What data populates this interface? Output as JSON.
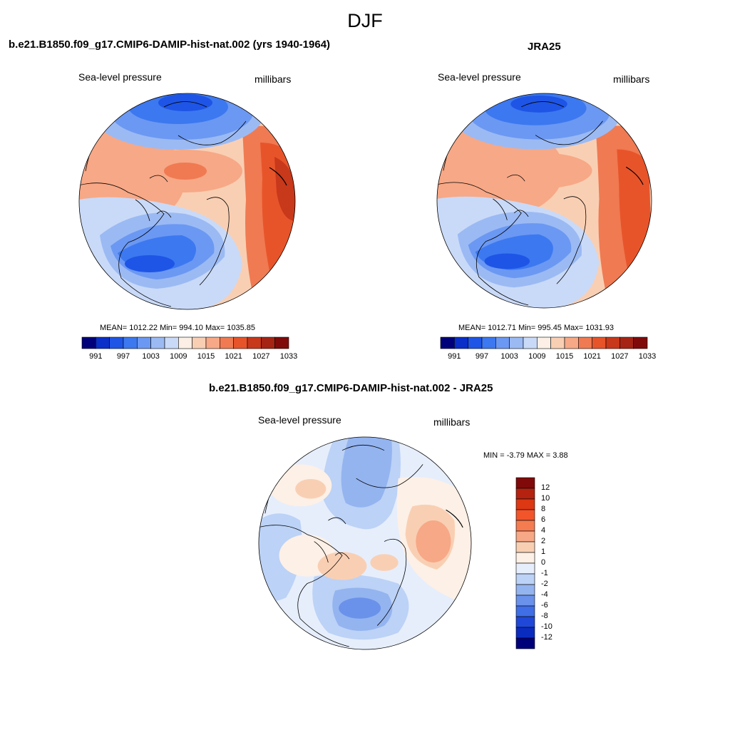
{
  "title": "DJF",
  "panels": [
    {
      "title": "b.e21.B1850.f09_g17.CMIP6-DAMIP-hist-nat.002 (yrs 1940-1964)",
      "variable": "Sea-level pressure",
      "units": "millibars",
      "stats": "MEAN= 1012.22  Min= 994.10  Max= 1035.85"
    },
    {
      "title": "JRA25",
      "variable": "Sea-level pressure",
      "units": "millibars",
      "stats": "MEAN= 1012.71  Min= 995.45  Max= 1031.93"
    },
    {
      "title": "b.e21.B1850.f09_g17.CMIP6-DAMIP-hist-nat.002 - JRA25",
      "variable": "Sea-level pressure",
      "units": "millibars",
      "stats": "MIN =  -3.79 MAX =   3.88"
    }
  ],
  "horizontal_colorbar": {
    "colors": [
      "#00007a",
      "#0a2ec8",
      "#1e55e6",
      "#3c78f0",
      "#6b98f2",
      "#9bbaf4",
      "#c9daf8",
      "#fbefe6",
      "#f9cfb3",
      "#f7a886",
      "#f07a52",
      "#e8542a",
      "#c8381a",
      "#a62414",
      "#800a0a"
    ],
    "labels": [
      "991",
      "997",
      "1003",
      "1009",
      "1015",
      "1021",
      "1027",
      "1033"
    ]
  },
  "vertical_colorbar": {
    "colors": [
      "#800a0a",
      "#b52210",
      "#dc3814",
      "#f2552a",
      "#f47c50",
      "#f7a886",
      "#f9cfb3",
      "#fdf0e6",
      "#e6eefc",
      "#bcd2f6",
      "#94b4f0",
      "#6a92ea",
      "#3f6ee6",
      "#2048d8",
      "#0a2cbe",
      "#00007a"
    ],
    "labels": [
      "12",
      "10",
      "8",
      "6",
      "4",
      "2",
      "1",
      "0",
      "-1",
      "-2",
      "-4",
      "-6",
      "-8",
      "-10",
      "-12"
    ]
  }
}
